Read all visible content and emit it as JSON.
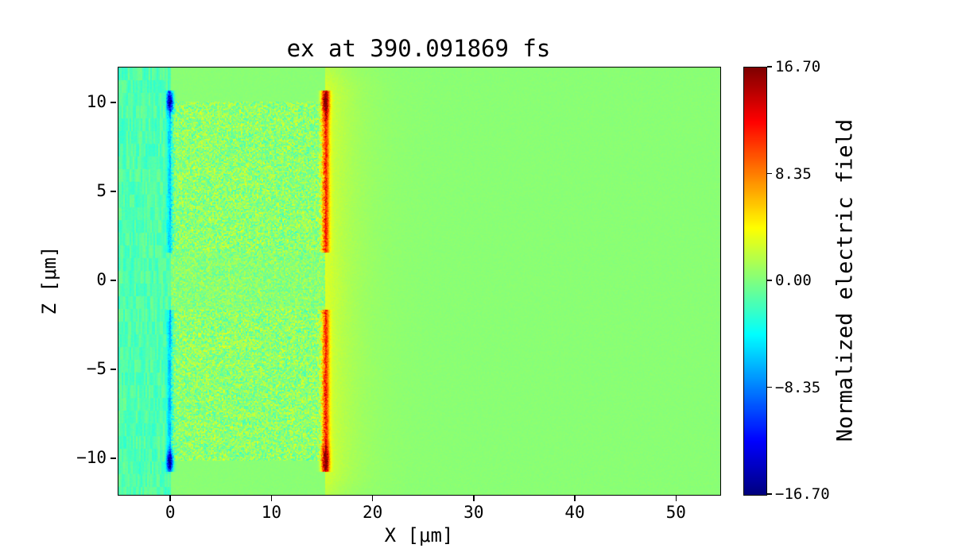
{
  "chart_data": {
    "type": "heatmap",
    "title": "ex at 390.091869 fs",
    "xlabel": "X [μm]",
    "ylabel": "Z [μm]",
    "xlim": [
      -5.2,
      54.3
    ],
    "ylim": [
      -12,
      12
    ],
    "grid": false,
    "legend": "none",
    "xticks": [
      {
        "value": 0,
        "label": "0"
      },
      {
        "value": 10,
        "label": "10"
      },
      {
        "value": 20,
        "label": "20"
      },
      {
        "value": 30,
        "label": "30"
      },
      {
        "value": 40,
        "label": "40"
      },
      {
        "value": 50,
        "label": "50"
      }
    ],
    "yticks": [
      {
        "value": 10,
        "label": "10"
      },
      {
        "value": 5,
        "label": "5"
      },
      {
        "value": 0,
        "label": "0"
      },
      {
        "value": -5,
        "label": "−5"
      },
      {
        "value": -10,
        "label": "−10"
      }
    ],
    "colorbar": {
      "label": "Normalized electric field",
      "vmin": -16.7,
      "vmax": 16.7,
      "colormap": "jet",
      "ticks": [
        {
          "value": 16.7,
          "label": "16.70"
        },
        {
          "value": 8.35,
          "label": "8.35"
        },
        {
          "value": 0,
          "label": "0.00"
        },
        {
          "value": -8.35,
          "label": "−8.35"
        },
        {
          "value": -16.7,
          "label": "−16.70"
        }
      ]
    },
    "field_model": {
      "background_value": 0.35,
      "background_noise": 0.5,
      "left_vacuum": {
        "value": -1.5,
        "streak_noise": 1.1,
        "fine_noise": 1.0
      },
      "plasma_slab": {
        "x_min": 0,
        "x_max": 15.2,
        "z_max": 10.1,
        "noise": 8.0,
        "noise_bias": 0.44
      },
      "slot": {
        "half_width": 1.6,
        "noise": 5.5
      },
      "front_sheath": {
        "x": -0.1,
        "width": 0.32,
        "value": -4.5,
        "tip_boost": 2.6,
        "tip_width": 0.55
      },
      "rear_sheath": {
        "x": 15.25,
        "width": 0.38,
        "value": 9.0,
        "tip_boost": 0.85,
        "tip_width": 0.8
      },
      "rear_glow": {
        "value": 2.8,
        "decay_length": 2.6
      }
    }
  }
}
